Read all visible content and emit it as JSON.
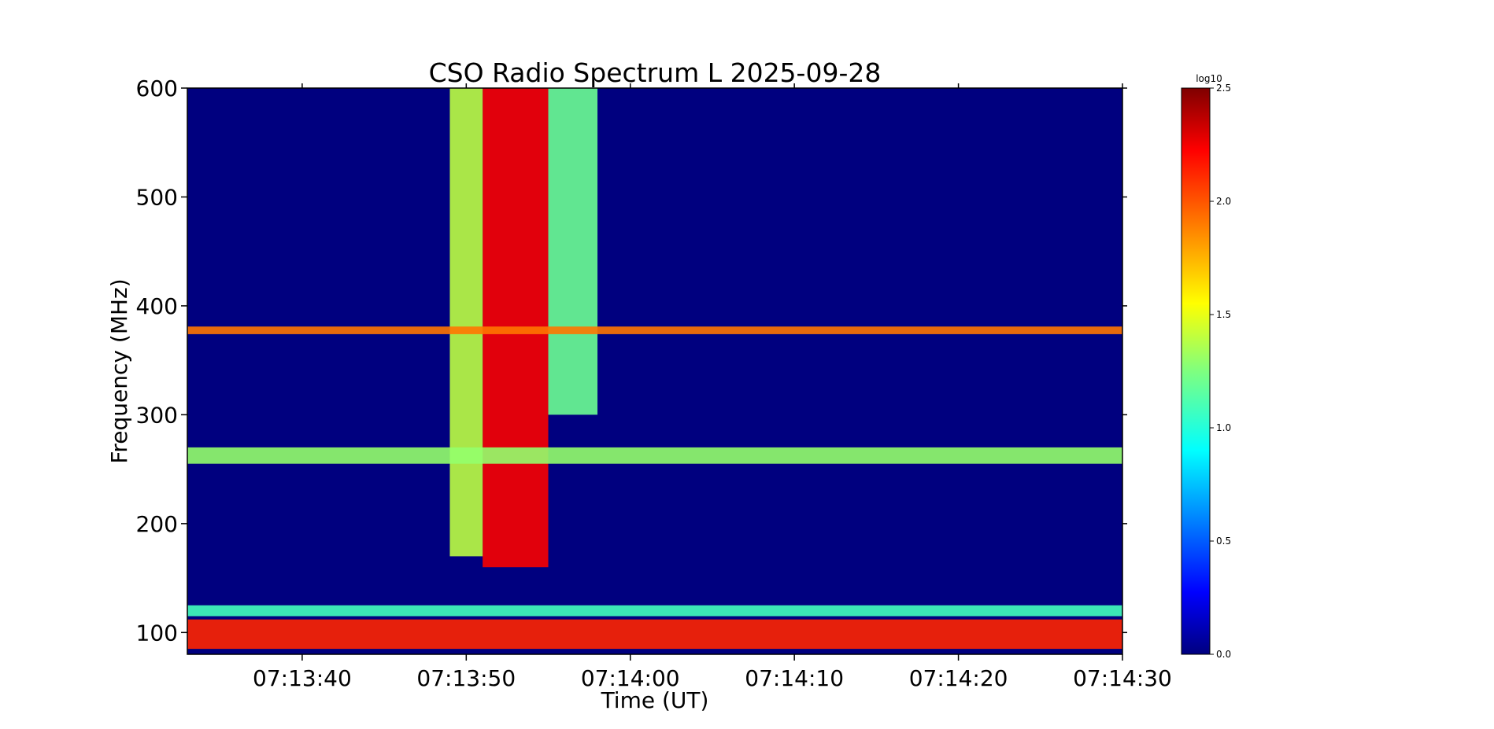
{
  "chart_data": {
    "type": "heatmap",
    "title": "CSO Radio Spectrum L 2025-09-28",
    "xlabel": "Time (UT)",
    "ylabel": "Frequency (MHz)",
    "x_ticks": [
      "07:13:40",
      "07:13:50",
      "07:14:00",
      "07:14:10",
      "07:14:20",
      "07:14:30"
    ],
    "x_range": [
      "07:13:33",
      "07:14:30"
    ],
    "y_ticks": [
      100,
      200,
      300,
      400,
      500,
      600
    ],
    "ylim": [
      80,
      600
    ],
    "colorbar": {
      "label": "log10",
      "ticks": [
        "0.0",
        "0.5",
        "1.0",
        "1.5",
        "2.0",
        "2.5"
      ],
      "range": [
        0.0,
        2.5
      ],
      "colormap": "jet"
    },
    "features": [
      {
        "kind": "burst",
        "t_start": "07:13:51",
        "t_end": "07:13:55",
        "f_low": 160,
        "f_high": 600,
        "level": 2.2
      },
      {
        "kind": "burst",
        "t_start": "07:13:49",
        "t_end": "07:13:51",
        "f_low": 170,
        "f_high": 600,
        "level": 1.4
      },
      {
        "kind": "burst",
        "t_start": "07:13:55",
        "t_end": "07:13:58",
        "f_low": 300,
        "f_high": 600,
        "level": 1.2
      },
      {
        "kind": "band",
        "f_low": 85,
        "f_high": 112,
        "level": 2.1
      },
      {
        "kind": "band",
        "f_low": 374,
        "f_high": 381,
        "level": 1.9
      },
      {
        "kind": "band",
        "f_low": 255,
        "f_high": 270,
        "level": 1.3
      },
      {
        "kind": "band",
        "f_low": 115,
        "f_high": 125,
        "level": 1.1
      }
    ]
  }
}
